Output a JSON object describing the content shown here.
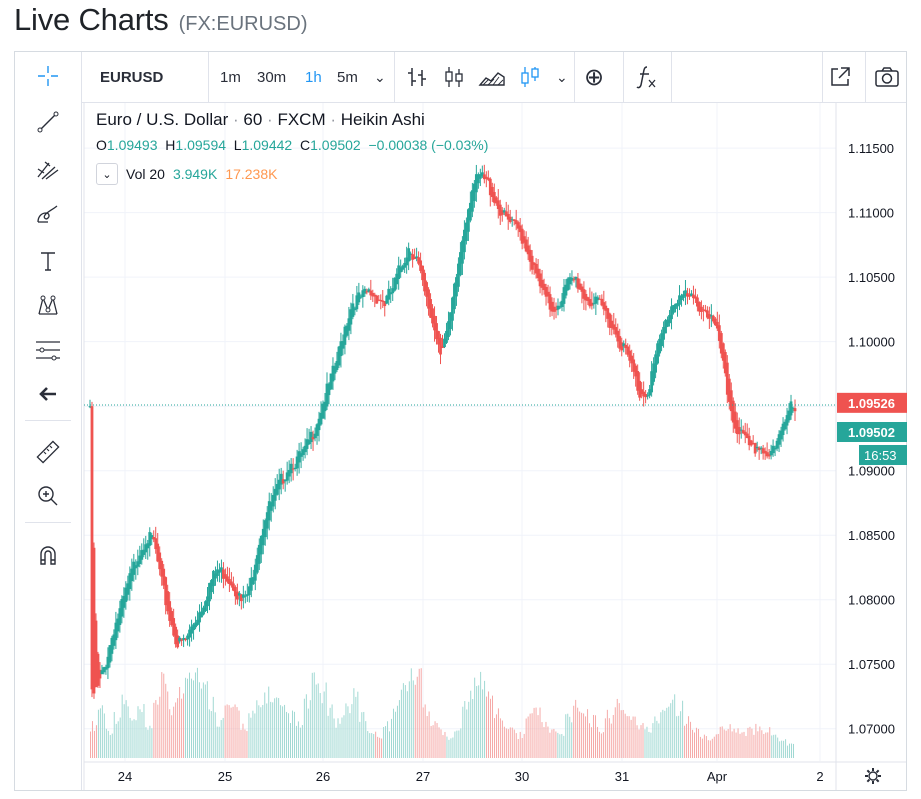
{
  "page": {
    "title": "Live Charts",
    "subtitle": "(FX:EURUSD)"
  },
  "topbar": {
    "symbol": "EURUSD",
    "intervals": [
      "1m",
      "30m",
      "1h",
      "5m"
    ],
    "active_interval": "1h",
    "chart_style_icons": [
      "bar-chart-icon",
      "candles-icon",
      "area-chart-icon",
      "heikin-ashi-icon"
    ],
    "dropdown_caret": "⌄",
    "compare_icon": "⊕",
    "indicators_icon": "fx",
    "popout_icon": "popout-icon",
    "screenshot_icon": "camera-icon"
  },
  "left_toolbar": [
    "crosshair-icon",
    "trend-line-icon",
    "pitchfork-icon",
    "brush-icon",
    "text-icon",
    "pattern-icon",
    "fib-icon",
    "back-arrow-icon",
    "ruler-icon",
    "zoom-in-icon",
    "magnet-icon"
  ],
  "legend": {
    "name": "Euro / U.S. Dollar",
    "interval": "60",
    "exchange": "FXCM",
    "style": "Heikin Ashi",
    "o_label": "O",
    "o": "1.09493",
    "h_label": "H",
    "h": "1.09594",
    "l_label": "L",
    "l": "1.09442",
    "c_label": "C",
    "c": "1.09502",
    "change": "−0.00038 (−0.03%)",
    "vol_label": "Vol 20",
    "vol_value": "3.949K",
    "vol_ma": "17.238K"
  },
  "price_axis": {
    "labels": [
      "1.11500",
      "1.11000",
      "1.10500",
      "1.10000",
      "1.09500",
      "1.09000",
      "1.08500",
      "1.08000",
      "1.07500",
      "1.07000"
    ],
    "tag_red": "1.09526",
    "tag_green": "1.09502",
    "countdown": "16:53"
  },
  "time_axis": {
    "labels": [
      "24",
      "25",
      "26",
      "27",
      "30",
      "31",
      "Apr",
      "2"
    ],
    "settings_icon": "gear-icon"
  },
  "colors": {
    "up": "#26a69a",
    "down": "#ef5350",
    "vol_up": "#9fd8d2",
    "vol_down": "#f5a8a6",
    "grid": "#f0f3fa",
    "accent": "#2196f3"
  },
  "chart_data": {
    "type": "heikin-ashi",
    "ylim": [
      1.0675,
      1.1185
    ],
    "x_labels": [
      "24",
      "25",
      "26",
      "27",
      "30",
      "31",
      "Apr",
      "2"
    ],
    "close_path": [
      [
        1,
        1.0725
      ],
      [
        4,
        1.0731
      ],
      [
        8,
        1.0752
      ],
      [
        12,
        1.0778
      ],
      [
        16,
        1.0795
      ],
      [
        20,
        1.0816
      ],
      [
        24,
        1.0835
      ],
      [
        28,
        1.0848
      ],
      [
        32,
        1.0845
      ],
      [
        36,
        1.0812
      ],
      [
        40,
        1.0786
      ],
      [
        44,
        1.0765
      ],
      [
        48,
        1.0768
      ],
      [
        52,
        1.0782
      ],
      [
        56,
        1.0794
      ],
      [
        60,
        1.0812
      ],
      [
        64,
        1.0823
      ],
      [
        68,
        1.082
      ],
      [
        72,
        1.0812
      ],
      [
        76,
        1.0798
      ],
      [
        80,
        1.0806
      ],
      [
        84,
        1.084
      ],
      [
        88,
        1.0865
      ],
      [
        92,
        1.0878
      ],
      [
        96,
        1.0892
      ],
      [
        100,
        1.0905
      ],
      [
        104,
        1.0908
      ],
      [
        108,
        1.0915
      ],
      [
        112,
        1.093
      ],
      [
        116,
        1.0948
      ],
      [
        120,
        1.0966
      ],
      [
        124,
        1.0985
      ],
      [
        128,
        1.1012
      ],
      [
        132,
        1.1031
      ],
      [
        136,
        1.1034
      ],
      [
        140,
        1.1038
      ],
      [
        144,
        1.1035
      ],
      [
        148,
        1.103
      ],
      [
        152,
        1.1041
      ],
      [
        156,
        1.1058
      ],
      [
        160,
        1.1073
      ],
      [
        164,
        1.1065
      ],
      [
        168,
        1.1036
      ],
      [
        172,
        1.1015
      ],
      [
        176,
        1.0995
      ],
      [
        180,
        1.101
      ],
      [
        184,
        1.105
      ],
      [
        188,
        1.109
      ],
      [
        192,
        1.112
      ],
      [
        196,
        1.1128
      ],
      [
        200,
        1.1122
      ],
      [
        204,
        1.1108
      ],
      [
        208,
        1.1096
      ],
      [
        212,
        1.109
      ],
      [
        216,
        1.1085
      ],
      [
        220,
        1.107
      ],
      [
        224,
        1.105
      ],
      [
        228,
        1.1035
      ],
      [
        232,
        1.1025
      ],
      [
        236,
        1.1032
      ],
      [
        240,
        1.1045
      ],
      [
        244,
        1.1048
      ],
      [
        248,
        1.1036
      ],
      [
        252,
        1.103
      ],
      [
        256,
        1.1028
      ],
      [
        260,
        1.102
      ],
      [
        264,
        1.1006
      ],
      [
        268,
        1.0995
      ],
      [
        272,
        1.098
      ],
      [
        276,
        1.096
      ],
      [
        280,
        1.0962
      ],
      [
        284,
        1.0988
      ],
      [
        288,
        1.101
      ],
      [
        292,
        1.1028
      ],
      [
        296,
        1.1036
      ],
      [
        300,
        1.1034
      ],
      [
        304,
        1.103
      ],
      [
        308,
        1.1026
      ],
      [
        312,
        1.1018
      ],
      [
        316,
        1.1
      ],
      [
        320,
        1.096
      ],
      [
        324,
        1.0935
      ],
      [
        328,
        1.0925
      ],
      [
        332,
        1.0915
      ],
      [
        336,
        1.092
      ],
      [
        340,
        1.0912
      ],
      [
        344,
        1.0915
      ],
      [
        348,
        1.0935
      ],
      [
        352,
        1.0955
      ],
      [
        354,
        1.095
      ]
    ],
    "volume_levels": [
      0.35,
      0.55,
      0.3,
      0.45,
      0.6,
      0.4,
      0.5,
      0.3,
      0.65,
      0.8,
      0.55,
      0.7,
      1.0,
      0.95,
      0.75,
      0.6,
      0.4,
      0.55,
      0.5,
      0.35,
      0.45,
      0.55,
      0.7,
      0.6,
      0.5,
      0.45,
      0.35,
      0.6,
      0.8,
      0.7,
      0.5,
      0.4,
      0.55,
      0.65,
      0.45,
      0.3,
      0.25,
      0.35,
      0.5,
      0.75,
      0.85,
      0.9,
      0.55,
      0.4,
      0.3,
      0.2,
      0.35,
      0.55,
      0.75,
      0.85,
      0.65,
      0.5,
      0.35,
      0.3,
      0.25,
      0.45,
      0.55,
      0.35,
      0.3,
      0.25,
      0.45,
      0.6,
      0.5,
      0.4,
      0.3,
      0.45,
      0.55,
      0.5,
      0.45,
      0.35,
      0.3,
      0.4,
      0.55,
      0.65,
      0.55,
      0.4,
      0.3,
      0.25,
      0.2,
      0.3,
      0.35,
      0.3,
      0.25,
      0.3,
      0.35,
      0.3,
      0.25,
      0.2,
      0.15
    ]
  }
}
